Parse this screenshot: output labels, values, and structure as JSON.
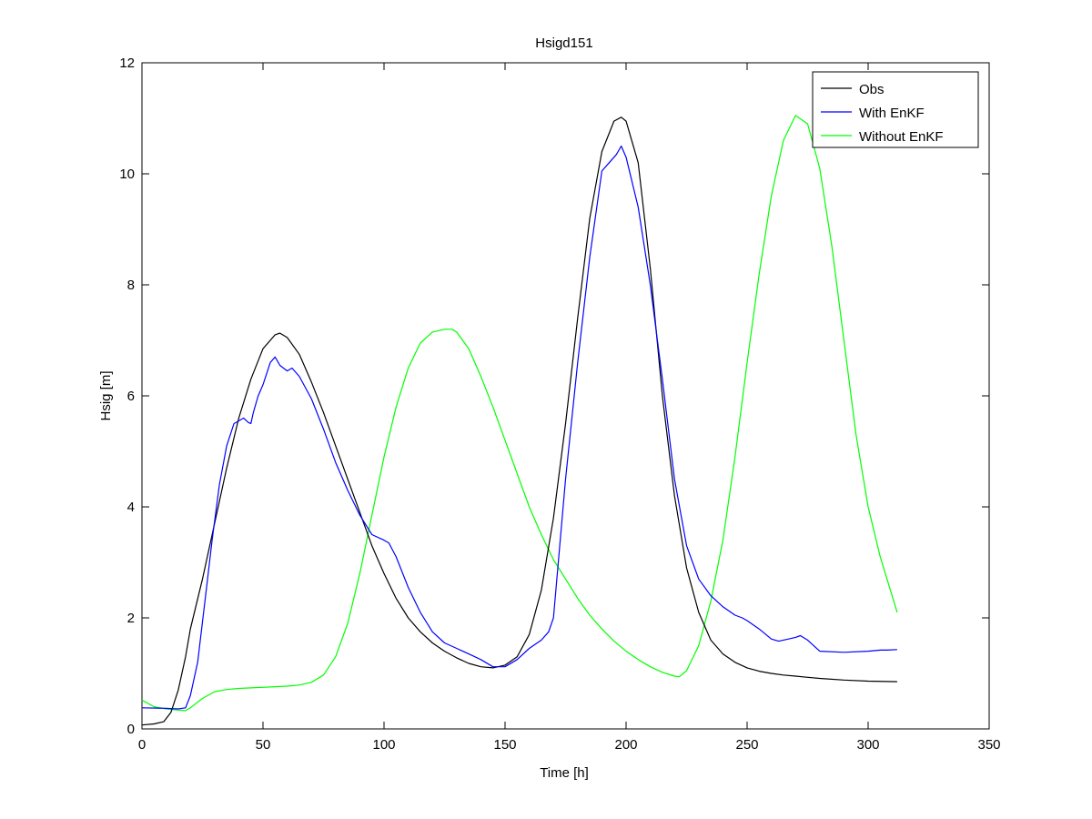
{
  "chart_data": {
    "type": "line",
    "title": "Hsigd151",
    "xlabel": "Time [h]",
    "ylabel": "Hsig [m]",
    "xlim": [
      0,
      350
    ],
    "ylim": [
      0,
      12
    ],
    "xticks": [
      0,
      50,
      100,
      150,
      200,
      250,
      300,
      350
    ],
    "yticks": [
      0,
      2,
      4,
      6,
      8,
      10,
      12
    ],
    "grid": false,
    "legend_position": "top-right",
    "series": [
      {
        "name": "Obs",
        "color": "#000000",
        "x": [
          0,
          5,
          9,
          12,
          15,
          18,
          20,
          25,
          30,
          35,
          40,
          45,
          50,
          55,
          57,
          60,
          65,
          70,
          75,
          80,
          85,
          90,
          95,
          100,
          105,
          110,
          115,
          120,
          125,
          130,
          135,
          140,
          145,
          150,
          155,
          160,
          165,
          170,
          175,
          180,
          185,
          190,
          195,
          198,
          200,
          205,
          210,
          215,
          220,
          225,
          230,
          235,
          240,
          245,
          250,
          255,
          260,
          265,
          270,
          275,
          280,
          290,
          300,
          312
        ],
        "values": [
          0.07,
          0.09,
          0.13,
          0.3,
          0.7,
          1.3,
          1.8,
          2.7,
          3.7,
          4.7,
          5.6,
          6.3,
          6.85,
          7.1,
          7.13,
          7.05,
          6.75,
          6.25,
          5.7,
          5.1,
          4.5,
          3.9,
          3.3,
          2.8,
          2.35,
          2.0,
          1.75,
          1.55,
          1.4,
          1.28,
          1.18,
          1.12,
          1.1,
          1.15,
          1.3,
          1.7,
          2.5,
          3.8,
          5.5,
          7.4,
          9.2,
          10.4,
          10.95,
          11.02,
          10.95,
          10.2,
          8.3,
          6.0,
          4.2,
          2.9,
          2.1,
          1.6,
          1.35,
          1.2,
          1.1,
          1.04,
          1.0,
          0.97,
          0.95,
          0.93,
          0.91,
          0.88,
          0.86,
          0.85
        ]
      },
      {
        "name": "With EnKF",
        "color": "#0000ff",
        "x": [
          0,
          10,
          15,
          18,
          20,
          23,
          26,
          29,
          32,
          35,
          38,
          40,
          42,
          44,
          45,
          46,
          48,
          50,
          53,
          55,
          57,
          60,
          62,
          65,
          70,
          75,
          80,
          85,
          90,
          95,
          100,
          102,
          105,
          110,
          115,
          120,
          125,
          130,
          135,
          140,
          145,
          150,
          155,
          160,
          165,
          168,
          170,
          172,
          175,
          180,
          185,
          190,
          193,
          196,
          198,
          200,
          205,
          210,
          215,
          220,
          225,
          230,
          235,
          240,
          245,
          248,
          250,
          255,
          260,
          263,
          265,
          270,
          272,
          275,
          280,
          290,
          300,
          305,
          308,
          312
        ],
        "values": [
          0.38,
          0.37,
          0.36,
          0.38,
          0.6,
          1.2,
          2.3,
          3.4,
          4.4,
          5.1,
          5.5,
          5.55,
          5.6,
          5.52,
          5.5,
          5.7,
          6.0,
          6.2,
          6.6,
          6.7,
          6.55,
          6.45,
          6.5,
          6.35,
          5.95,
          5.4,
          4.8,
          4.3,
          3.85,
          3.5,
          3.4,
          3.35,
          3.1,
          2.55,
          2.1,
          1.75,
          1.55,
          1.45,
          1.35,
          1.25,
          1.12,
          1.12,
          1.25,
          1.45,
          1.6,
          1.75,
          2.0,
          3.0,
          4.5,
          6.6,
          8.5,
          10.05,
          10.2,
          10.35,
          10.5,
          10.3,
          9.4,
          8.0,
          6.3,
          4.5,
          3.3,
          2.7,
          2.4,
          2.2,
          2.05,
          2.0,
          1.95,
          1.8,
          1.62,
          1.58,
          1.6,
          1.65,
          1.68,
          1.6,
          1.4,
          1.38,
          1.4,
          1.42,
          1.42,
          1.43
        ]
      },
      {
        "name": "Without EnKF",
        "color": "#00ff00",
        "x": [
          0,
          5,
          10,
          15,
          18,
          20,
          25,
          30,
          35,
          40,
          45,
          50,
          55,
          60,
          65,
          70,
          75,
          80,
          85,
          90,
          95,
          100,
          105,
          110,
          115,
          120,
          125,
          128,
          130,
          135,
          140,
          145,
          150,
          155,
          160,
          165,
          170,
          175,
          180,
          185,
          190,
          195,
          200,
          205,
          210,
          215,
          220,
          222,
          225,
          230,
          235,
          240,
          245,
          250,
          255,
          260,
          265,
          270,
          275,
          280,
          285,
          290,
          295,
          300,
          305,
          312
        ],
        "values": [
          0.52,
          0.4,
          0.36,
          0.34,
          0.33,
          0.38,
          0.55,
          0.67,
          0.71,
          0.73,
          0.74,
          0.75,
          0.76,
          0.77,
          0.79,
          0.84,
          0.97,
          1.3,
          1.9,
          2.8,
          3.85,
          4.9,
          5.8,
          6.5,
          6.95,
          7.15,
          7.2,
          7.2,
          7.15,
          6.85,
          6.35,
          5.8,
          5.2,
          4.6,
          4.0,
          3.5,
          3.05,
          2.7,
          2.35,
          2.05,
          1.8,
          1.58,
          1.4,
          1.25,
          1.12,
          1.02,
          0.95,
          0.94,
          1.05,
          1.5,
          2.3,
          3.4,
          4.9,
          6.6,
          8.2,
          9.6,
          10.6,
          11.05,
          10.9,
          10.1,
          8.7,
          7.0,
          5.3,
          4.0,
          3.1,
          2.1
        ]
      }
    ]
  }
}
